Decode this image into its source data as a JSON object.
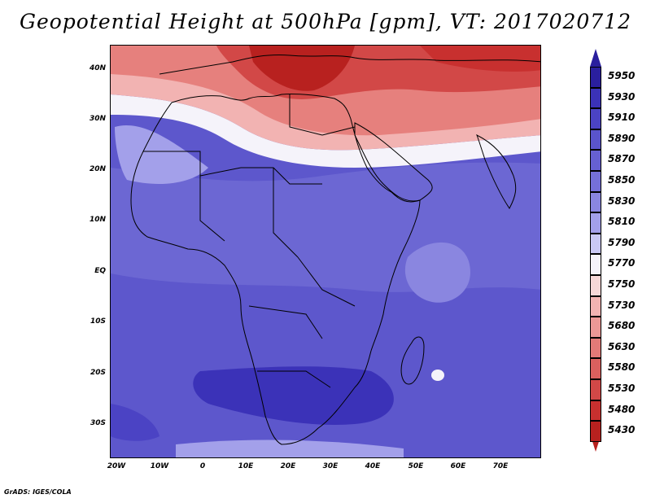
{
  "title": "Geopotential Height at 500hPa [gpm], VT: 2017020712",
  "footer": "GrADS: IGES/COLA",
  "lat_labels": [
    "40N",
    "30N",
    "20N",
    "10N",
    "EQ",
    "10S",
    "20S",
    "30S"
  ],
  "lon_labels": [
    "20W",
    "10W",
    "0",
    "10E",
    "20E",
    "30E",
    "40E",
    "50E",
    "60E",
    "70E"
  ],
  "colorbar": {
    "levels": [
      "5950",
      "5930",
      "5910",
      "5890",
      "5870",
      "5850",
      "5830",
      "5810",
      "5790",
      "5770",
      "5750",
      "5730",
      "5680",
      "5630",
      "5580",
      "5530",
      "5480",
      "5430"
    ],
    "colors": [
      "#2a1f9e",
      "#3b32b8",
      "#4b43c4",
      "#5a54cc",
      "#6660d2",
      "#7570d8",
      "#8a86e0",
      "#a3a0ea",
      "#c9c8f4",
      "#f5f3fa",
      "#f6d7d7",
      "#f2b3b2",
      "#ec9896",
      "#e27a78",
      "#da605e",
      "#d24847",
      "#c8302f",
      "#b8211f"
    ]
  },
  "colors": {
    "ocean": "#5d57cc",
    "land_main": "#6c67d3",
    "high_red": "#c52c2a",
    "mid_red": "#e6807d",
    "white_band": "#f5f3fa"
  }
}
